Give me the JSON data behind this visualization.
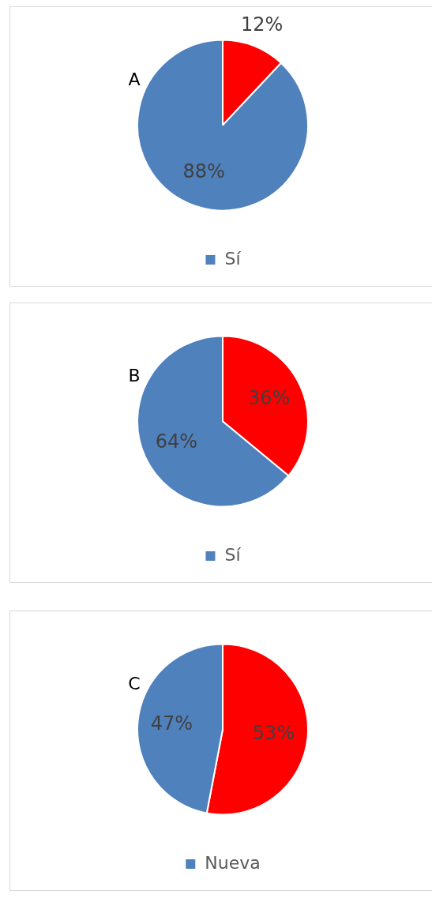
{
  "chart_data": [
    {
      "type": "pie",
      "title": "A",
      "categories": [
        null,
        "Sí"
      ],
      "values": [
        12,
        88
      ],
      "colors": [
        "#ff0000",
        "#4f81bd"
      ],
      "value_labels": [
        "12%",
        "88%"
      ],
      "legend": "bottom"
    },
    {
      "type": "pie",
      "title": "B",
      "categories": [
        null,
        "Sí"
      ],
      "values": [
        36,
        64
      ],
      "colors": [
        "#ff0000",
        "#4f81bd"
      ],
      "value_labels": [
        "36%",
        "64%"
      ],
      "legend": "bottom"
    },
    {
      "type": "pie",
      "title": "C",
      "categories": [
        null,
        "Nueva"
      ],
      "values": [
        53,
        47
      ],
      "colors": [
        "#ff0000",
        "#4f81bd"
      ],
      "value_labels": [
        "53%",
        "47%"
      ],
      "legend": "bottom"
    }
  ]
}
